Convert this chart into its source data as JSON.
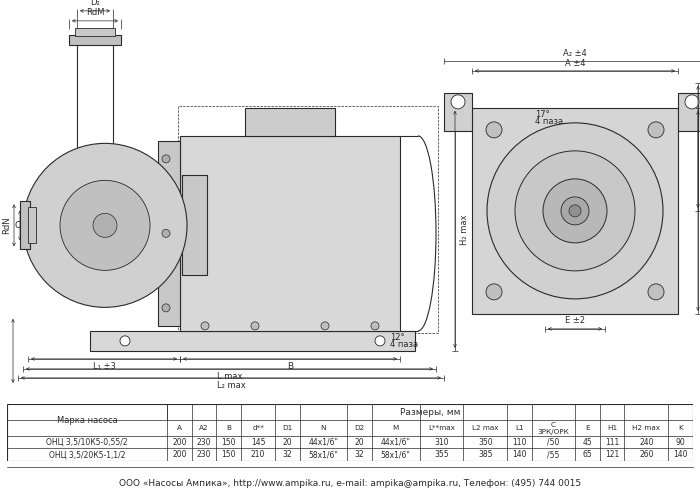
{
  "footer": "ООО «Насосы Ампика», http://www.ampika.ru, e-mail: ampika@ampika.ru, Телефон: (495) 744 0015",
  "table_data": [
    [
      "ОНЦ 3,5/10К5-0,55/2",
      "200",
      "230",
      "150",
      "145",
      "20",
      "44x1/6\"",
      "20",
      "44x1/6\"",
      "310",
      "350",
      "110",
      "/50",
      "45",
      "111",
      "240",
      "90"
    ],
    [
      "ОНЦ 3,5/20К5-1,1/2",
      "200",
      "230",
      "150",
      "210",
      "32",
      "58x1/6\"",
      "32",
      "58x1/6\"",
      "355",
      "385",
      "140",
      "/55",
      "65",
      "121",
      "260",
      "140"
    ]
  ],
  "col_labels": [
    "A",
    "A2",
    "B",
    "d**",
    "D1",
    "N",
    "D2",
    "M",
    "L**max",
    "L2 max",
    "L1",
    "C\n3РК/ОРК",
    "E",
    "H1",
    "H2 max",
    "K"
  ],
  "bg_color": "#ffffff",
  "dc": "#2a2a2a"
}
